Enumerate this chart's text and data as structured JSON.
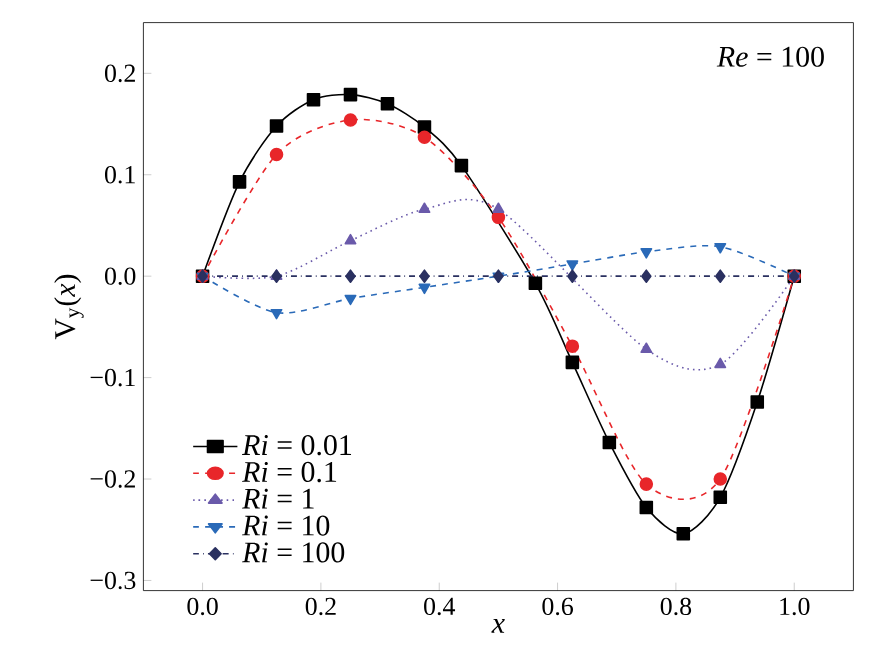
{
  "chart_data": {
    "type": "line",
    "xlabel": "x",
    "ylabel": "V$_{y}$(*x*)",
    "annotations": [
      "*Re* = 100"
    ],
    "xlim": [
      -0.1,
      1.1
    ],
    "ylim": [
      -0.31,
      0.25
    ],
    "xticks": [
      {
        "value": 0,
        "label": "0.0"
      },
      {
        "value": 0.2,
        "label": "0.2"
      },
      {
        "value": 0.4,
        "label": "0.4"
      },
      {
        "value": 0.6,
        "label": "0.6"
      },
      {
        "value": 0.8,
        "label": "0.8"
      },
      {
        "value": 1,
        "label": "1.0"
      }
    ],
    "yticks": [
      {
        "value": -0.3,
        "label": "−0.3"
      },
      {
        "value": -0.2,
        "label": "−0.2"
      },
      {
        "value": -0.1,
        "label": "−0.1"
      },
      {
        "value": 0,
        "label": "0.0"
      },
      {
        "value": 0.1,
        "label": "0.1"
      },
      {
        "value": 0.2,
        "label": "0.2"
      }
    ],
    "legend": "bottom left",
    "grid": false,
    "series": [
      {
        "name": "*Ri* = 0.01",
        "color": "#000000",
        "marker": "square",
        "line_style": "solid",
        "x": [
          0,
          0.0625,
          0.125,
          0.1875,
          0.25,
          0.3125,
          0.375,
          0.4375,
          0.5,
          0.5625,
          0.625,
          0.6875,
          0.75,
          0.8125,
          0.875,
          0.9375,
          1
        ],
        "values": [
          0,
          0.093,
          0.148,
          0.174,
          0.179,
          0.17,
          0.147,
          0.109,
          null,
          -0.007,
          -0.085,
          -0.164,
          -0.228,
          -0.254,
          -0.218,
          -0.124,
          0
        ]
      },
      {
        "name": "*Ri* = 0.1",
        "color": "#e8262a",
        "marker": "circle",
        "line_style": "dashed",
        "x": [
          0,
          0.125,
          0.25,
          0.375,
          0.5,
          0.625,
          0.75,
          0.875,
          1
        ],
        "values": [
          0,
          0.12,
          0.154,
          0.137,
          0.058,
          -0.069,
          -0.205,
          -0.2,
          0
        ]
      },
      {
        "name": "*Ri* = 1",
        "color": "#6a5aaa",
        "marker": "triangle",
        "line_style": "dotted",
        "x": [
          0,
          0.125,
          0.25,
          0.375,
          0.5,
          0.625,
          0.75,
          0.875,
          1
        ],
        "values": [
          0,
          0,
          0.035,
          0.066,
          0.066,
          null,
          -0.072,
          -0.087,
          0
        ]
      },
      {
        "name": "*Ri* = 10",
        "color": "#2a6ab8",
        "marker": "triangle-down",
        "line_style": "dashed",
        "x": [
          0,
          0.125,
          0.25,
          0.375,
          0.5,
          0.625,
          0.75,
          0.875,
          1
        ],
        "values": [
          0,
          -0.036,
          -0.022,
          -0.011,
          0,
          0.012,
          0.024,
          0.029,
          0
        ]
      },
      {
        "name": "*Ri* = 100",
        "color": "#2a3060",
        "marker": "diamond",
        "line_style": "dashdot",
        "x": [
          0,
          0.125,
          0.25,
          0.375,
          0.5,
          0.625,
          0.75,
          0.875,
          1
        ],
        "values": [
          0,
          0,
          0,
          0,
          0,
          0,
          0,
          0,
          0
        ]
      }
    ]
  }
}
